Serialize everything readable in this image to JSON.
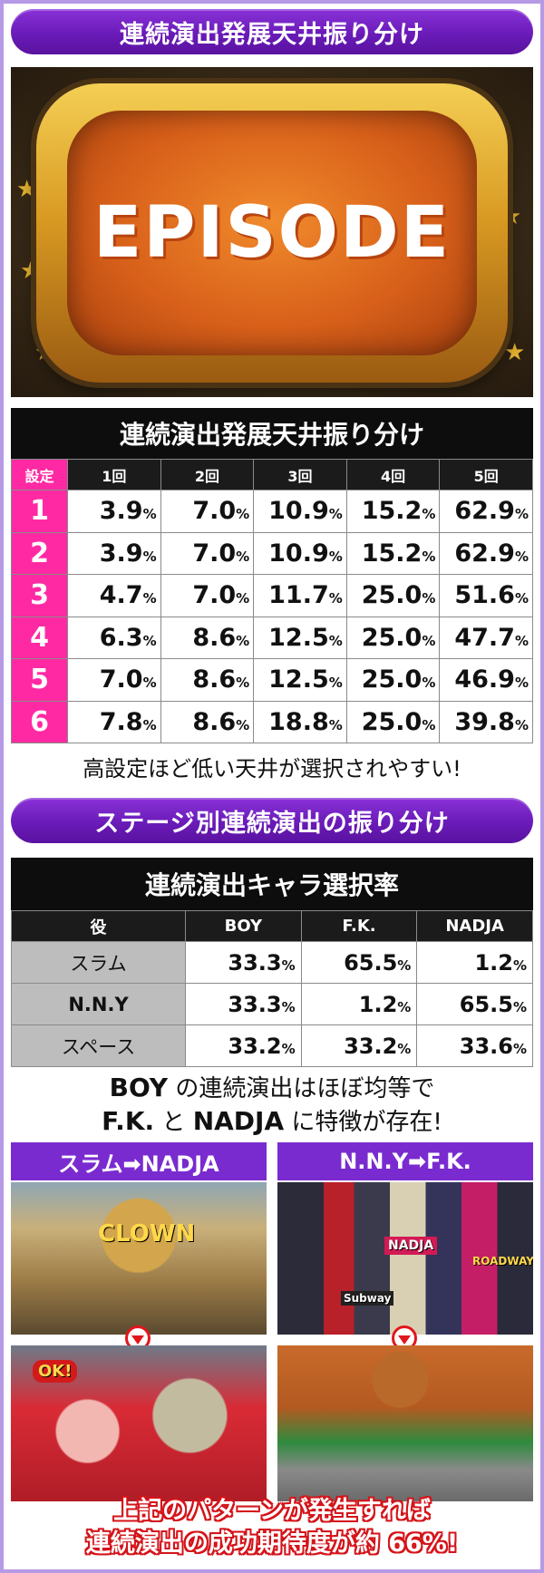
{
  "section1": {
    "banner": "連続演出発展天井振り分け"
  },
  "episode_image": {
    "text": "EPISODE",
    "icon": "tv-screen-icon"
  },
  "table1": {
    "title": "連続演出発展天井振り分け",
    "headers": [
      "設定",
      "1回",
      "2回",
      "3回",
      "4回",
      "5回"
    ],
    "pct_unit": "%",
    "rows": [
      {
        "setting": "1",
        "values": [
          "3.9",
          "7.0",
          "10.9",
          "15.2",
          "62.9"
        ]
      },
      {
        "setting": "2",
        "values": [
          "3.9",
          "7.0",
          "10.9",
          "15.2",
          "62.9"
        ]
      },
      {
        "setting": "3",
        "values": [
          "4.7",
          "7.0",
          "11.7",
          "25.0",
          "51.6"
        ]
      },
      {
        "setting": "4",
        "values": [
          "6.3",
          "8.6",
          "12.5",
          "25.0",
          "47.7"
        ]
      },
      {
        "setting": "5",
        "values": [
          "7.0",
          "8.6",
          "12.5",
          "25.0",
          "46.9"
        ]
      },
      {
        "setting": "6",
        "values": [
          "7.8",
          "8.6",
          "18.8",
          "25.0",
          "39.8"
        ]
      }
    ],
    "note": "高設定ほど低い天井が選択されやすい!"
  },
  "section2": {
    "banner": "ステージ別連続演出の振り分け"
  },
  "table2": {
    "title": "連続演出キャラ選択率",
    "headers": [
      "役",
      "BOY",
      "F.K.",
      "NADJA"
    ],
    "pct_unit": "%",
    "rows": [
      {
        "role": "スラム",
        "values": [
          "33.3",
          "65.5",
          "1.2"
        ]
      },
      {
        "role": "N.N.Y",
        "values": [
          "33.3",
          "1.2",
          "65.5"
        ]
      },
      {
        "role": "スペース",
        "values": [
          "33.2",
          "33.2",
          "33.6"
        ]
      }
    ],
    "note_line1_a": "BOY",
    "note_line1_b": " の連続演出はほぼ均等で",
    "note_line2_a": "F.K.",
    "note_line2_b": " と ",
    "note_line2_c": "NADJA",
    "note_line2_d": " に特徴が存在!"
  },
  "panels": {
    "left_title": "スラム➡NADJA",
    "right_title": "N.N.Y➡F.K.",
    "left_scene_text": "CLOWN",
    "left_bubble_text": "OK!",
    "right_scene_sign": "NADJA",
    "right_scene_subway": "Subway",
    "right_scene_broadway": "ROADWAY"
  },
  "footer": {
    "line1": "上記のパターンが発生すれば",
    "line2": "連続演出の成功期待度が約 66%!"
  }
}
